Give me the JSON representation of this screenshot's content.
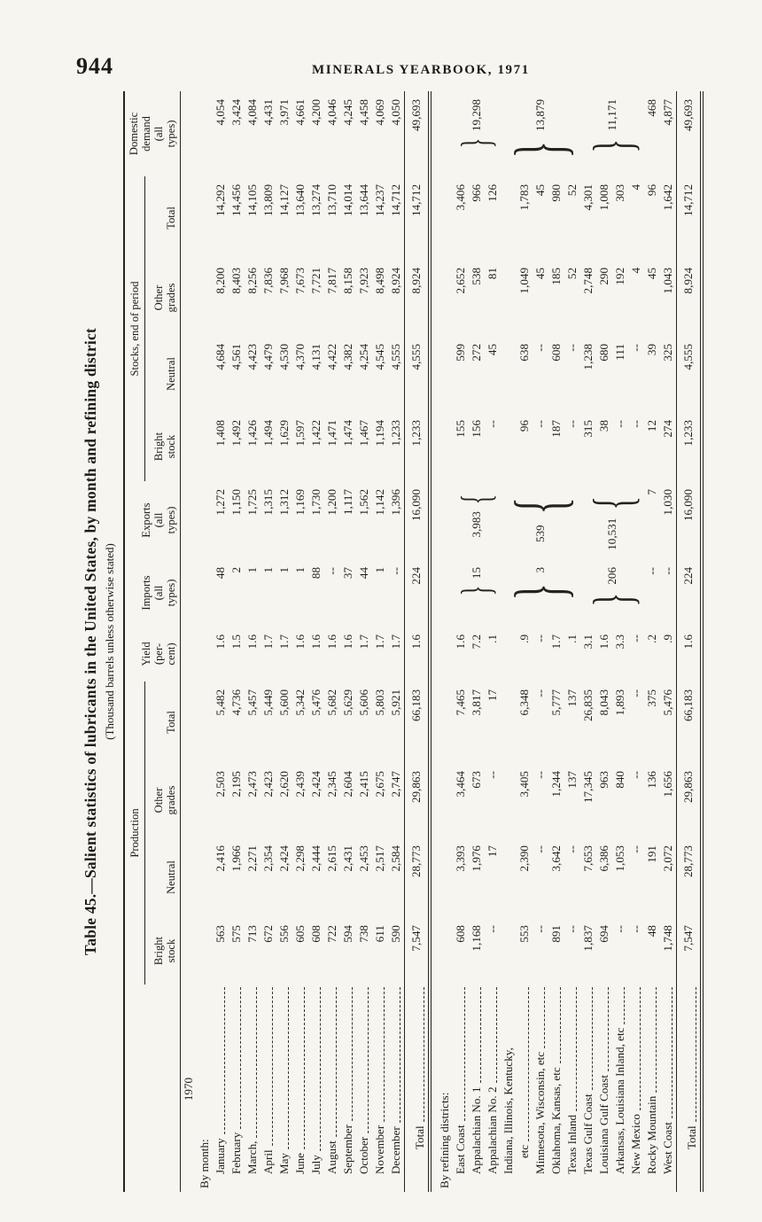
{
  "page": {
    "number": "944",
    "running_header": "MINERALS YEARBOOK, 1971"
  },
  "table": {
    "title": "Table 45.—Salient statistics of lubricants in the United States, by month and refining district",
    "subtitle": "(Thousand barrels unless otherwise stated)",
    "header": {
      "production": "Production",
      "stocks": "Stocks, end of period",
      "yield": "Yield\n(per-\ncent)",
      "imports": "Imports\n(all\ntypes)",
      "exports": "Exports\n(all\ntypes)",
      "demand": "Domestic\ndemand\n(all\ntypes)",
      "bright": "Bright\nstock",
      "neutral": "Neutral",
      "other": "Other\ngrades",
      "total": "Total"
    },
    "year": "1970",
    "by_month_label": "By month:",
    "by_district_label": "By refining districts:",
    "total_label": "Total",
    "months": [
      {
        "label": "January",
        "values": [
          "563",
          "2,416",
          "2,503",
          "5,482",
          "1.6",
          "48",
          "1,272",
          "1,408",
          "4,684",
          "8,200",
          "14,292",
          "4,054"
        ]
      },
      {
        "label": "February",
        "values": [
          "575",
          "1,966",
          "2,195",
          "4,736",
          "1.5",
          "2",
          "1,150",
          "1,492",
          "4,561",
          "8,403",
          "14,456",
          "3,424"
        ]
      },
      {
        "label": "March,",
        "values": [
          "713",
          "2,271",
          "2,473",
          "5,457",
          "1.6",
          "1",
          "1,725",
          "1,426",
          "4,423",
          "8,256",
          "14,105",
          "4,084"
        ]
      },
      {
        "label": "April",
        "values": [
          "672",
          "2,354",
          "2,423",
          "5,449",
          "1.7",
          "1",
          "1,315",
          "1,494",
          "4,479",
          "7,836",
          "13,809",
          "4,431"
        ]
      },
      {
        "label": "May",
        "values": [
          "556",
          "2,424",
          "2,620",
          "5,600",
          "1.7",
          "1",
          "1,312",
          "1,629",
          "4,530",
          "7,968",
          "14,127",
          "3,971"
        ]
      },
      {
        "label": "June",
        "values": [
          "605",
          "2,298",
          "2,439",
          "5,342",
          "1.6",
          "1",
          "1,169",
          "1,597",
          "4,370",
          "7,673",
          "13,640",
          "4,661"
        ]
      },
      {
        "label": "July",
        "values": [
          "608",
          "2,444",
          "2,424",
          "5,476",
          "1.6",
          "88",
          "1,730",
          "1,422",
          "4,131",
          "7,721",
          "13,274",
          "4,200"
        ]
      },
      {
        "label": "August",
        "values": [
          "722",
          "2,615",
          "2,345",
          "5,682",
          "1.6",
          "--",
          "1,200",
          "1,471",
          "4,422",
          "7,817",
          "13,710",
          "4,046"
        ]
      },
      {
        "label": "September",
        "values": [
          "594",
          "2,431",
          "2,604",
          "5,629",
          "1.6",
          "37",
          "1,117",
          "1,474",
          "4,382",
          "8,158",
          "14,014",
          "4,245"
        ]
      },
      {
        "label": "October",
        "values": [
          "738",
          "2,453",
          "2,415",
          "5,606",
          "1.7",
          "44",
          "1,562",
          "1,467",
          "4,254",
          "7,923",
          "13,644",
          "4,458"
        ]
      },
      {
        "label": "November",
        "values": [
          "611",
          "2,517",
          "2,675",
          "5,803",
          "1.7",
          "1",
          "1,142",
          "1,194",
          "4,545",
          "8,498",
          "14,237",
          "4,069"
        ]
      },
      {
        "label": "December",
        "values": [
          "590",
          "2,584",
          "2,747",
          "5,921",
          "1.7",
          "--",
          "1,396",
          "1,233",
          "4,555",
          "8,924",
          "14,712",
          "4,050"
        ]
      }
    ],
    "month_total": [
      "7,547",
      "28,773",
      "29,863",
      "66,183",
      "1.6",
      "224",
      "16,090",
      "1,233",
      "4,555",
      "8,924",
      "14,712",
      "49,693"
    ],
    "districts": [
      {
        "label": "East Coast",
        "values": [
          "608",
          "3,393",
          "3,464",
          "7,465",
          "1.6",
          "155",
          "599",
          "2,652",
          "3,406"
        ]
      },
      {
        "label": "Appalachian No. 1",
        "values": [
          "1,168",
          "1,976",
          "673",
          "3,817",
          "7.2",
          "156",
          "272",
          "538",
          "966"
        ]
      },
      {
        "label": "Appalachian No. 2",
        "values": [
          "--",
          "17",
          "--",
          "17",
          ".1",
          "--",
          "45",
          "81",
          "126"
        ]
      },
      {
        "label": "Indiana, Illinois, Kentucky,",
        "leader": false,
        "values": [
          "",
          "",
          "",
          "",
          "",
          "",
          "",
          "",
          ""
        ]
      },
      {
        "label": "etc",
        "indent": 2,
        "values": [
          "553",
          "2,390",
          "3,405",
          "6,348",
          ".9",
          "96",
          "638",
          "1,049",
          "1,783"
        ]
      },
      {
        "label": "Minnesota, Wisconsin, etc",
        "values": [
          "--",
          "--",
          "--",
          "--",
          "--",
          "--",
          "--",
          "45",
          "45"
        ]
      },
      {
        "label": "Oklahoma, Kansas, etc",
        "values": [
          "891",
          "3,642",
          "1,244",
          "5,777",
          "1.7",
          "187",
          "608",
          "185",
          "980"
        ]
      },
      {
        "label": "Texas Inland",
        "values": [
          "--",
          "--",
          "137",
          "137",
          ".1",
          "--",
          "--",
          "52",
          "52"
        ]
      },
      {
        "label": "Texas Gulf Coast",
        "values": [
          "1,837",
          "7,653",
          "17,345",
          "26,835",
          "3.1",
          "315",
          "1,238",
          "2,748",
          "4,301"
        ]
      },
      {
        "label": "Louisiana Gulf Coast",
        "values": [
          "694",
          "6,386",
          "963",
          "8,043",
          "1.6",
          "38",
          "680",
          "290",
          "1,008"
        ]
      },
      {
        "label": "Arkansas, Louisiana Inland, etc",
        "values": [
          "--",
          "1,053",
          "840",
          "1,893",
          "3.3",
          "--",
          "111",
          "192",
          "303"
        ]
      },
      {
        "label": "New Mexico",
        "values": [
          "--",
          "--",
          "--",
          "--",
          "--",
          "--",
          "--",
          "4",
          "4"
        ]
      },
      {
        "label": "Rocky Mountain",
        "values": [
          "48",
          "191",
          "136",
          "375",
          ".2",
          "12",
          "39",
          "45",
          "96"
        ]
      },
      {
        "label": "West Coast",
        "values": [
          "1,748",
          "2,072",
          "1,656",
          "5,476",
          ".9",
          "274",
          "325",
          "1,043",
          "1,642"
        ]
      }
    ],
    "district_groups": [
      {
        "start": 0,
        "len": 3,
        "imports": "15",
        "exports": "3,983",
        "demand": "19,298"
      },
      {
        "start": 3,
        "len": 5,
        "imports": "3",
        "exports": "539",
        "demand": "13,879"
      },
      {
        "start": 8,
        "len": 4,
        "imports": "206",
        "exports": "10,531",
        "demand": "11,171"
      },
      {
        "start": 12,
        "len": 1,
        "imports": "--",
        "exports": "7",
        "demand": "468"
      },
      {
        "start": 13,
        "len": 1,
        "imports": "--",
        "exports": "1,030",
        "demand": "4,877"
      }
    ],
    "district_total": [
      "7,547",
      "28,773",
      "29,863",
      "66,183",
      "1.6",
      "224",
      "16,090",
      "1,233",
      "4,555",
      "8,924",
      "14,712",
      "49,693"
    ]
  }
}
